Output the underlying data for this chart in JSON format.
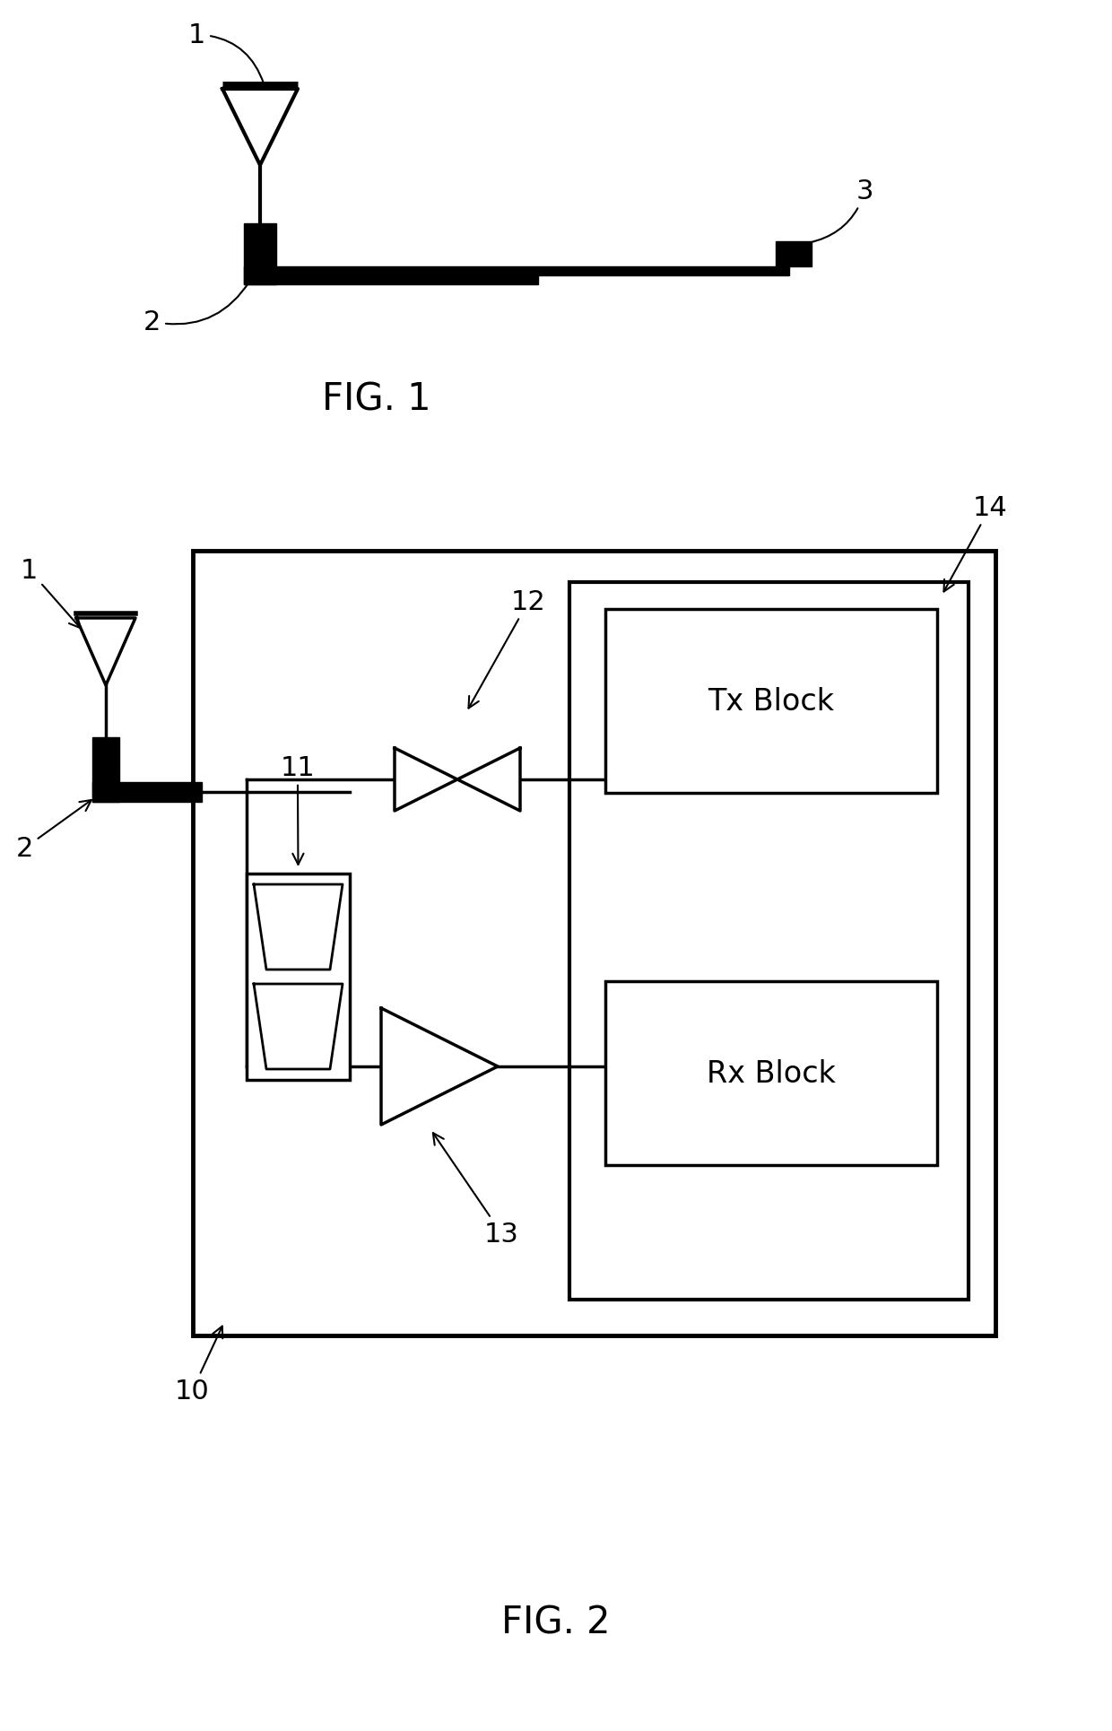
{
  "fig_width": 12.4,
  "fig_height": 19.31,
  "bg_color": "#ffffff",
  "line_color": "#000000",
  "fig1_label": "FIG. 1",
  "fig2_label": "FIG. 2",
  "labels": {
    "fig1_1": "1",
    "fig1_2": "2",
    "fig1_3": "3",
    "fig2_1": "1",
    "fig2_2": "2",
    "fig2_10": "10",
    "fig2_11": "11",
    "fig2_12": "12",
    "fig2_13": "13",
    "fig2_14": "14",
    "tx_block": "Tx Block",
    "rx_block": "Rx Block"
  },
  "font_size_label": 22,
  "font_size_fig": 30
}
